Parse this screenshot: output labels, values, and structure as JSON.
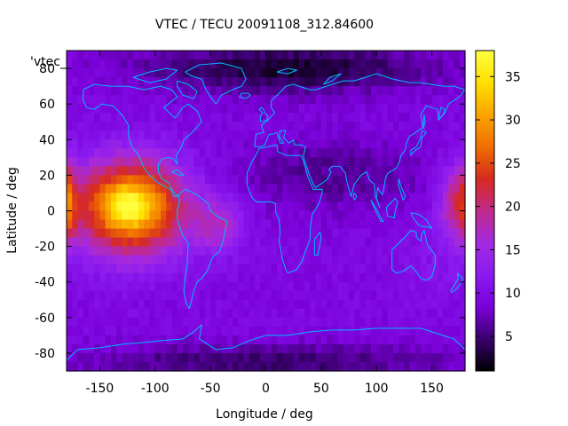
{
  "chart_data": {
    "type": "heatmap",
    "title": "VTEC / TECU 20091108_312.84600",
    "xlabel": "Longitude / deg",
    "ylabel": "Latitude / deg",
    "key_label": "'vtec_",
    "xlim": [
      -180,
      180
    ],
    "ylim": [
      -90,
      90
    ],
    "x_ticks": [
      -150,
      -100,
      -50,
      0,
      50,
      100,
      150
    ],
    "y_ticks": [
      -80,
      -60,
      -40,
      -20,
      0,
      20,
      40,
      60,
      80
    ],
    "colorbar": {
      "range": [
        1,
        38
      ],
      "ticks": [
        5,
        10,
        15,
        20,
        25,
        30,
        35
      ],
      "palette": [
        "#000000",
        "#3a006e",
        "#7a00d8",
        "#8a1af0",
        "#a52ae0",
        "#c02a8a",
        "#d72a20",
        "#f06e00",
        "#faa400",
        "#ffe000",
        "#ffff40"
      ]
    },
    "grid": false,
    "peaks": [
      {
        "lon": -125,
        "lat": 3,
        "value": 36
      },
      {
        "lon": -125,
        "lat": 0,
        "value": 32
      },
      {
        "lon": 180,
        "lat": 5,
        "value": 26
      },
      {
        "lon": -40,
        "lat": -5,
        "value": 18
      }
    ]
  },
  "colors": {
    "coastline": "#00b8ff",
    "frame": "#000000"
  }
}
